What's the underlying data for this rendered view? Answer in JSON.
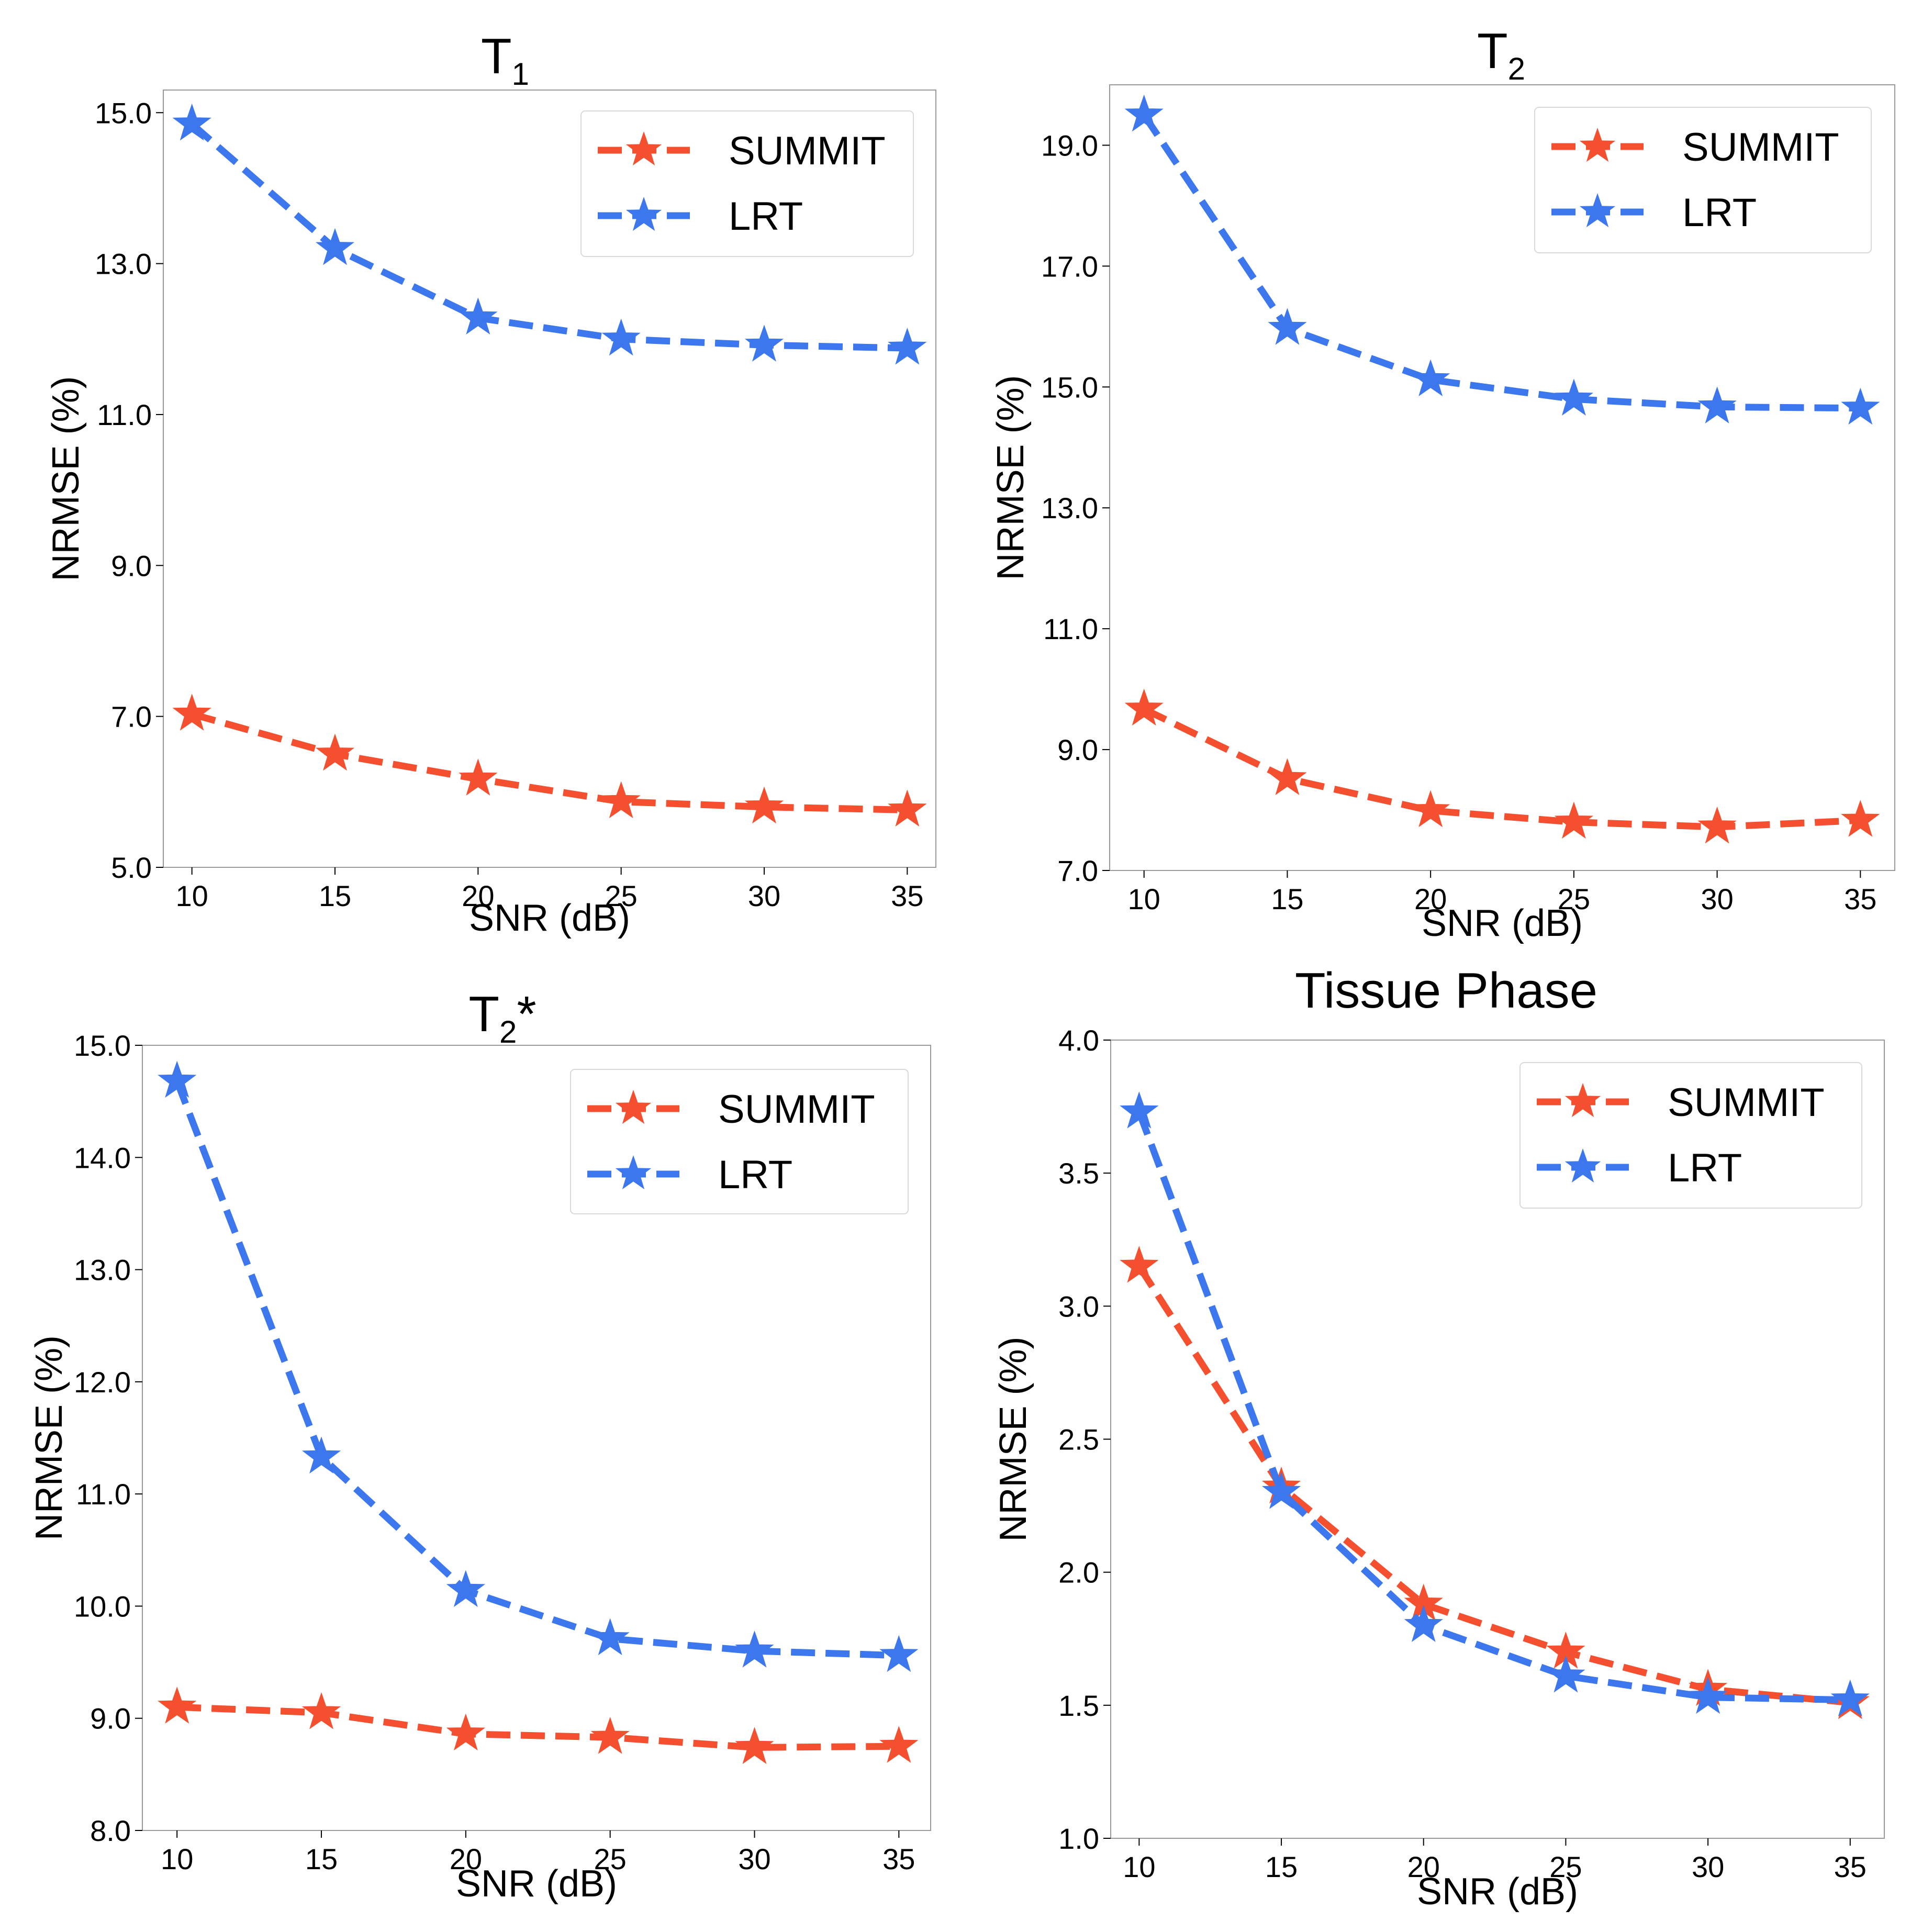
{
  "chart_data": [
    {
      "type": "line",
      "title": "T",
      "title_subscript": "1",
      "title_suffix": "",
      "xlabel": "SNR (dB)",
      "ylabel": "NRMSE (%)",
      "x": [
        10,
        15,
        20,
        25,
        30,
        35
      ],
      "xticks": [
        "10",
        "15",
        "20",
        "25",
        "30",
        "35"
      ],
      "xlim": [
        9.0,
        36.0
      ],
      "yticks": [
        "5.0",
        "7.0",
        "9.0",
        "11.0",
        "13.0",
        "15.0"
      ],
      "ylim": [
        5.0,
        15.3
      ],
      "legend_position": "upper right",
      "grid": false,
      "series": [
        {
          "name": "SUMMIT",
          "color": "#f4502f",
          "values": [
            7.03,
            6.5,
            6.17,
            5.87,
            5.8,
            5.76
          ]
        },
        {
          "name": "LRT",
          "color": "#3c77ee",
          "values": [
            14.85,
            13.2,
            12.28,
            12.0,
            11.92,
            11.88
          ]
        }
      ]
    },
    {
      "type": "line",
      "title": "T",
      "title_subscript": "2",
      "title_suffix": "",
      "xlabel": "SNR (dB)",
      "ylabel": "NRMSE (%)",
      "x": [
        10,
        15,
        20,
        25,
        30,
        35
      ],
      "xticks": [
        "10",
        "15",
        "20",
        "25",
        "30",
        "35"
      ],
      "xlim": [
        8.8,
        36.2
      ],
      "yticks": [
        "7.0",
        "9.0",
        "11.0",
        "13.0",
        "15.0",
        "17.0",
        "19.0"
      ],
      "ylim": [
        7.0,
        20.0
      ],
      "legend_position": "upper right",
      "grid": false,
      "series": [
        {
          "name": "SUMMIT",
          "color": "#f4502f",
          "values": [
            9.67,
            8.52,
            7.99,
            7.8,
            7.72,
            7.83
          ]
        },
        {
          "name": "LRT",
          "color": "#3c77ee",
          "values": [
            19.5,
            15.97,
            15.12,
            14.8,
            14.67,
            14.65
          ]
        }
      ]
    },
    {
      "type": "line",
      "title": "T",
      "title_subscript": "2",
      "title_suffix": "*",
      "xlabel": "SNR (dB)",
      "ylabel": "NRMSE (%)",
      "x": [
        10,
        15,
        20,
        25,
        30,
        35
      ],
      "xticks": [
        "10",
        "15",
        "20",
        "25",
        "30",
        "35"
      ],
      "xlim": [
        8.8,
        36.1
      ],
      "yticks": [
        "8.0",
        "9.0",
        "10.0",
        "11.0",
        "12.0",
        "13.0",
        "14.0",
        "15.0"
      ],
      "ylim": [
        8.0,
        15.0
      ],
      "legend_position": "upper right",
      "grid": false,
      "series": [
        {
          "name": "SUMMIT",
          "color": "#f4502f",
          "values": [
            9.1,
            9.05,
            8.86,
            8.83,
            8.74,
            8.75
          ]
        },
        {
          "name": "LRT",
          "color": "#3c77ee",
          "values": [
            14.68,
            11.33,
            10.14,
            9.71,
            9.6,
            9.56
          ]
        }
      ]
    },
    {
      "type": "line",
      "title": "Tissue Phase",
      "title_subscript": "",
      "title_suffix": "",
      "xlabel": "SNR (dB)",
      "ylabel": "NRMSE (%)",
      "x": [
        10,
        15,
        20,
        25,
        30,
        35
      ],
      "xticks": [
        "10",
        "15",
        "20",
        "25",
        "30",
        "35"
      ],
      "xlim": [
        9.0,
        36.2
      ],
      "yticks": [
        "1.0",
        "1.5",
        "2.0",
        "2.5",
        "3.0",
        "3.5",
        "4.0"
      ],
      "ylim": [
        1.0,
        4.0
      ],
      "legend_position": "upper right",
      "grid": false,
      "series": [
        {
          "name": "SUMMIT",
          "color": "#f4502f",
          "values": [
            3.15,
            2.32,
            1.88,
            1.7,
            1.56,
            1.51
          ]
        },
        {
          "name": "LRT",
          "color": "#3c77ee",
          "values": [
            3.73,
            2.3,
            1.8,
            1.61,
            1.53,
            1.52
          ]
        }
      ]
    }
  ]
}
